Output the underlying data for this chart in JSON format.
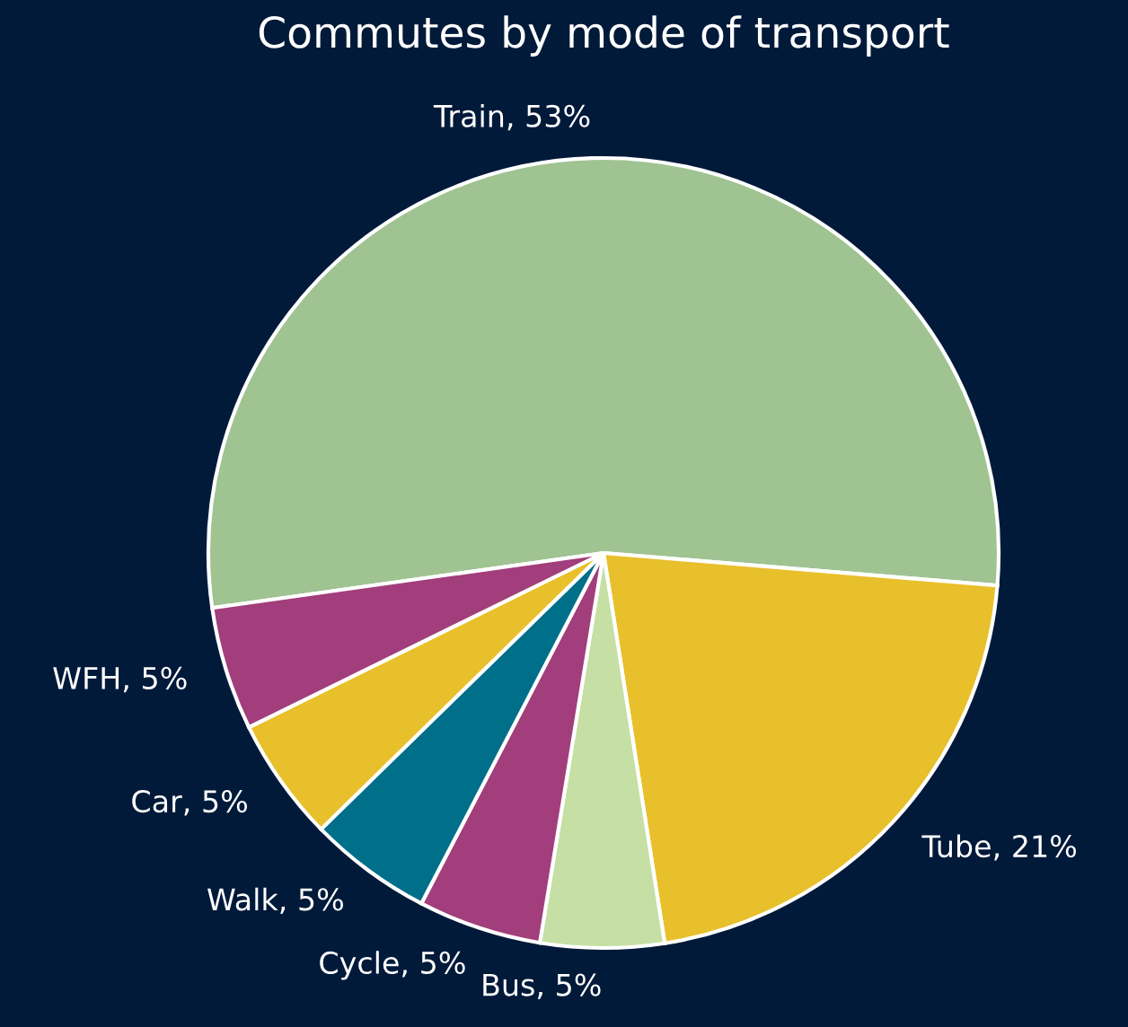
{
  "chart_data": {
    "type": "pie",
    "title": "Commutes by mode of transport",
    "categories": [
      "Train",
      "Tube",
      "Bus",
      "Cycle",
      "Walk",
      "Car",
      "WFH"
    ],
    "values": [
      53,
      21,
      5,
      5,
      5,
      5,
      5
    ],
    "value_labels": [
      "53%",
      "21%",
      "5%",
      "5%",
      "5%",
      "5%",
      "5%"
    ],
    "colors": [
      "#a0c392",
      "#e8c02b",
      "#c5dfa5",
      "#a23e7b",
      "#006f8a",
      "#e8c02b",
      "#a23e7b"
    ],
    "legend": false
  }
}
